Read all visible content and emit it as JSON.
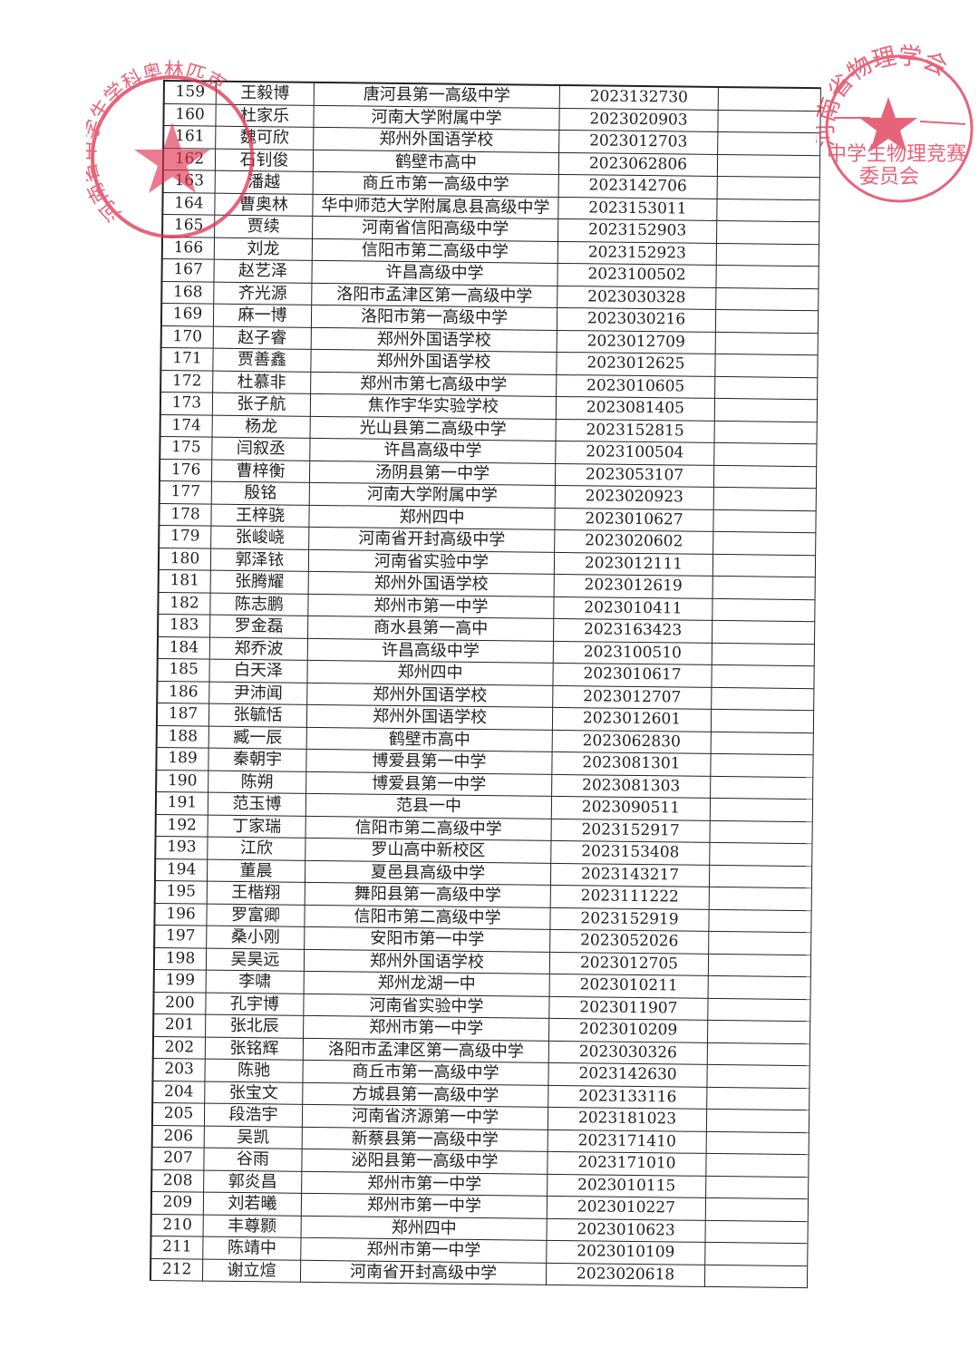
{
  "stamp_left": "河南省中学生学科奥林匹克",
  "stamp_right": {
    "top": "河南省物理学会",
    "bottom": "中学生物理竞赛委员会"
  },
  "stamp_color": "#e0304e",
  "rows": [
    [
      "159",
      "王毅博",
      "唐河县第一高级中学",
      "2023132730"
    ],
    [
      "160",
      "杜家乐",
      "河南大学附属中学",
      "2023020903"
    ],
    [
      "161",
      "魏可欣",
      "郑州外国语学校",
      "2023012703"
    ],
    [
      "162",
      "石钊俊",
      "鹤壁市高中",
      "2023062806"
    ],
    [
      "163",
      "潘越",
      "商丘市第一高级中学",
      "2023142706"
    ],
    [
      "164",
      "曹奥林",
      "华中师范大学附属息县高级中学",
      "2023153011"
    ],
    [
      "165",
      "贾续",
      "河南省信阳高级中学",
      "2023152903"
    ],
    [
      "166",
      "刘龙",
      "信阳市第二高级中学",
      "2023152923"
    ],
    [
      "167",
      "赵艺泽",
      "许昌高级中学",
      "2023100502"
    ],
    [
      "168",
      "齐光源",
      "洛阳市孟津区第一高级中学",
      "2023030328"
    ],
    [
      "169",
      "麻一博",
      "洛阳市第一高级中学",
      "2023030216"
    ],
    [
      "170",
      "赵子睿",
      "郑州外国语学校",
      "2023012709"
    ],
    [
      "171",
      "贾善鑫",
      "郑州外国语学校",
      "2023012625"
    ],
    [
      "172",
      "杜慕非",
      "郑州市第七高级中学",
      "2023010605"
    ],
    [
      "173",
      "张子航",
      "焦作宇华实验学校",
      "2023081405"
    ],
    [
      "174",
      "杨龙",
      "光山县第二高级中学",
      "2023152815"
    ],
    [
      "175",
      "闫叙丞",
      "许昌高级中学",
      "2023100504"
    ],
    [
      "176",
      "曹梓衡",
      "汤阴县第一中学",
      "2023053107"
    ],
    [
      "177",
      "殷铭",
      "河南大学附属中学",
      "2023020923"
    ],
    [
      "178",
      "王梓骁",
      "郑州四中",
      "2023010627"
    ],
    [
      "179",
      "张峻峣",
      "河南省开封高级中学",
      "2023020602"
    ],
    [
      "180",
      "郭泽铱",
      "河南省实验中学",
      "2023012111"
    ],
    [
      "181",
      "张腾耀",
      "郑州外国语学校",
      "2023012619"
    ],
    [
      "182",
      "陈志鹏",
      "郑州市第一中学",
      "2023010411"
    ],
    [
      "183",
      "罗金磊",
      "商水县第一高中",
      "2023163423"
    ],
    [
      "184",
      "郑乔波",
      "许昌高级中学",
      "2023100510"
    ],
    [
      "185",
      "白天泽",
      "郑州四中",
      "2023010617"
    ],
    [
      "186",
      "尹沛闻",
      "郑州外国语学校",
      "2023012707"
    ],
    [
      "187",
      "张毓恬",
      "郑州外国语学校",
      "2023012601"
    ],
    [
      "188",
      "臧一辰",
      "鹤壁市高中",
      "2023062830"
    ],
    [
      "189",
      "秦朝宇",
      "博爱县第一中学",
      "2023081301"
    ],
    [
      "190",
      "陈朔",
      "博爱县第一中学",
      "2023081303"
    ],
    [
      "191",
      "范玉博",
      "范县一中",
      "2023090511"
    ],
    [
      "192",
      "丁家瑞",
      "信阳市第二高级中学",
      "2023152917"
    ],
    [
      "193",
      "江欣",
      "罗山高中新校区",
      "2023153408"
    ],
    [
      "194",
      "董晨",
      "夏邑县高级中学",
      "2023143217"
    ],
    [
      "195",
      "王楷翔",
      "舞阳县第一高级中学",
      "2023111222"
    ],
    [
      "196",
      "罗富卿",
      "信阳市第二高级中学",
      "2023152919"
    ],
    [
      "197",
      "桑小刚",
      "安阳市第一中学",
      "2023052026"
    ],
    [
      "198",
      "吴昊远",
      "郑州外国语学校",
      "2023012705"
    ],
    [
      "199",
      "李啸",
      "郑州龙湖一中",
      "2023010211"
    ],
    [
      "200",
      "孔宇博",
      "河南省实验中学",
      "2023011907"
    ],
    [
      "201",
      "张北辰",
      "郑州市第一中学",
      "2023010209"
    ],
    [
      "202",
      "张铭辉",
      "洛阳市孟津区第一高级中学",
      "2023030326"
    ],
    [
      "203",
      "陈驰",
      "商丘市第一高级中学",
      "2023142630"
    ],
    [
      "204",
      "张宝文",
      "方城县第一高级中学",
      "2023133116"
    ],
    [
      "205",
      "段浩宇",
      "河南省济源第一中学",
      "2023181023"
    ],
    [
      "206",
      "吴凯",
      "新蔡县第一高级中学",
      "2023171410"
    ],
    [
      "207",
      "谷雨",
      "泌阳县第一高级中学",
      "2023171010"
    ],
    [
      "208",
      "郭炎昌",
      "郑州市第一中学",
      "2023010115"
    ],
    [
      "209",
      "刘若曦",
      "郑州市第一中学",
      "2023010227"
    ],
    [
      "210",
      "丰尊颢",
      "郑州四中",
      "2023010623"
    ],
    [
      "211",
      "陈靖中",
      "郑州市第一中学",
      "2023010109"
    ],
    [
      "212",
      "谢立煊",
      "河南省开封高级中学",
      "2023020618"
    ]
  ]
}
